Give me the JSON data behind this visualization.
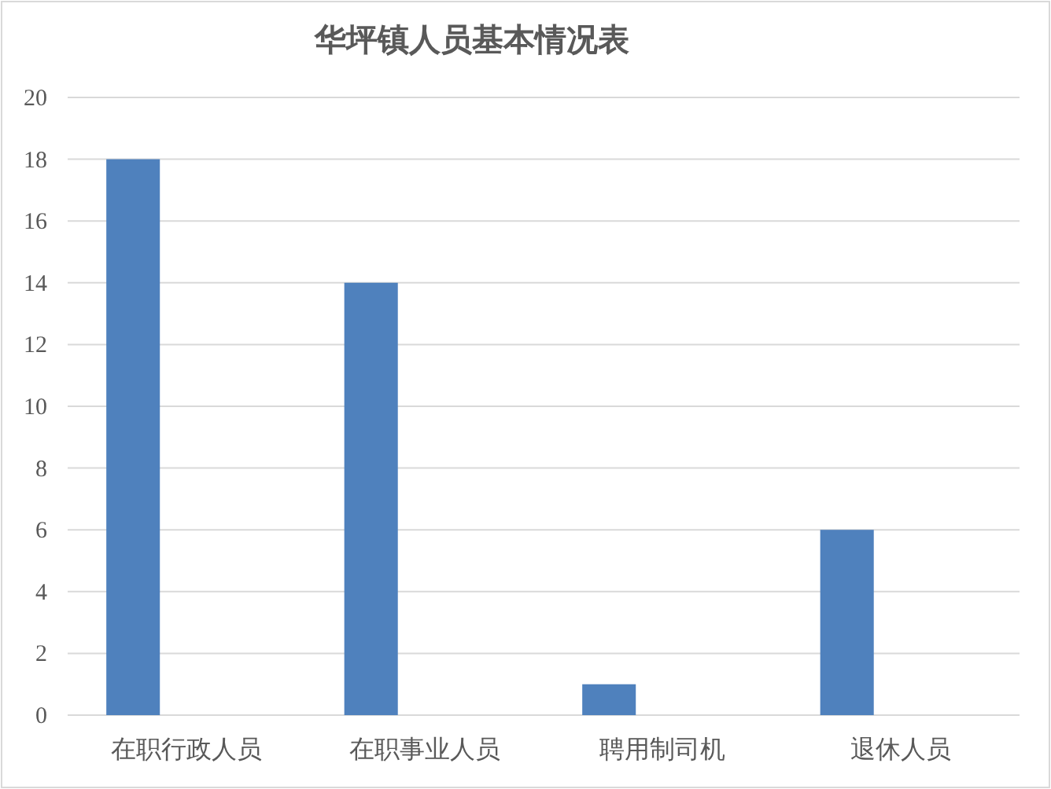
{
  "chart_data": {
    "type": "bar",
    "title": "华坪镇人员基本情况表",
    "categories": [
      "在职行政人员",
      "在职事业人员",
      "聘用制司机",
      "退休人员"
    ],
    "values": [
      18,
      14,
      1,
      6
    ],
    "color": "#4f81bd",
    "ylim": [
      0,
      20
    ],
    "yticks": [
      0,
      2,
      4,
      6,
      8,
      10,
      12,
      14,
      16,
      18,
      20
    ],
    "grid": "y"
  }
}
